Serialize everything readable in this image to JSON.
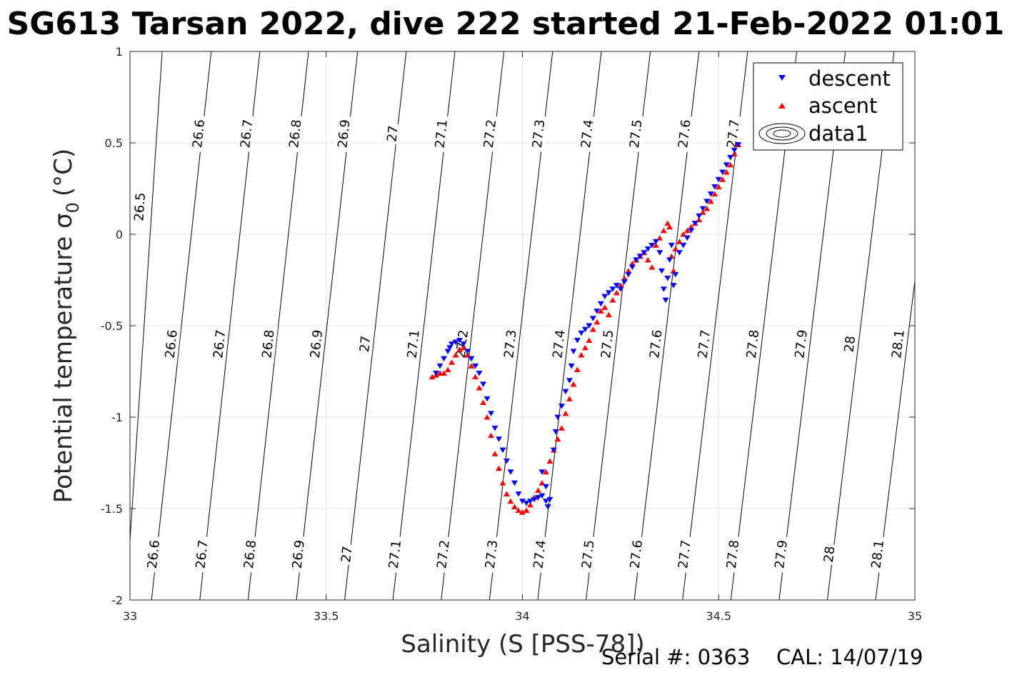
{
  "chart_data": {
    "type": "scatter",
    "title": "SG613 Tarsan 2022, dive 222 started 21-Feb-2022 01:01",
    "xlabel": "Salinity (S [PSS-78])",
    "ylabel_main": "Potential temperature σ",
    "ylabel_sub": "0",
    "ylabel_unit": "(°C)",
    "xlim": [
      33,
      35
    ],
    "ylim": [
      -2,
      1
    ],
    "x_ticks": [
      33,
      33.5,
      34,
      34.5,
      35
    ],
    "x_tick_labels": [
      "33",
      "33.5",
      "34",
      "34.5",
      "35"
    ],
    "y_ticks": [
      -2,
      -1.5,
      -1,
      -0.5,
      0,
      0.5,
      1
    ],
    "y_tick_labels": [
      "-2",
      "-1.5",
      "-1",
      "-0.5",
      "0",
      "0.5",
      "1"
    ],
    "grid": true,
    "legend_position": "top-right",
    "legend": [
      "descent",
      "ascent",
      "data1"
    ],
    "isopycnals": [
      {
        "value": 26.5,
        "label": "26.5",
        "s_at_tmax": 33.082,
        "s_at_tmin": 32.99,
        "label_points": [
          [
            33.025,
            0.15
          ]
        ]
      },
      {
        "value": 26.6,
        "label": "26.6",
        "s_at_tmax": 33.207,
        "s_at_tmin": 33.055,
        "label_points": [
          [
            33.175,
            0.55
          ],
          [
            33.105,
            -0.6
          ],
          [
            33.06,
            -1.75
          ]
        ]
      },
      {
        "value": 26.7,
        "label": "26.7",
        "s_at_tmax": 33.331,
        "s_at_tmin": 33.178,
        "label_points": [
          [
            33.297,
            0.55
          ],
          [
            33.228,
            -0.6
          ],
          [
            33.183,
            -1.75
          ]
        ]
      },
      {
        "value": 26.8,
        "label": "26.8",
        "s_at_tmax": 33.455,
        "s_at_tmin": 33.301,
        "label_points": [
          [
            33.421,
            0.55
          ],
          [
            33.352,
            -0.6
          ],
          [
            33.306,
            -1.75
          ]
        ]
      },
      {
        "value": 26.9,
        "label": "26.9",
        "s_at_tmax": 33.58,
        "s_at_tmin": 33.424,
        "label_points": [
          [
            33.545,
            0.55
          ],
          [
            33.475,
            -0.6
          ],
          [
            33.429,
            -1.75
          ]
        ]
      },
      {
        "value": 27.0,
        "label": "27",
        "s_at_tmax": 33.704,
        "s_at_tmin": 33.547,
        "label_points": [
          [
            33.669,
            0.55
          ],
          [
            33.599,
            -0.6
          ],
          [
            33.552,
            -1.75
          ]
        ]
      },
      {
        "value": 27.1,
        "label": "27.1",
        "s_at_tmax": 33.828,
        "s_at_tmin": 33.67,
        "label_points": [
          [
            33.793,
            0.55
          ],
          [
            33.722,
            -0.6
          ],
          [
            33.675,
            -1.75
          ]
        ]
      },
      {
        "value": 27.2,
        "label": "27.2",
        "s_at_tmax": 33.953,
        "s_at_tmin": 33.793,
        "label_points": [
          [
            33.917,
            0.55
          ],
          [
            33.846,
            -0.6
          ],
          [
            33.798,
            -1.75
          ]
        ]
      },
      {
        "value": 27.3,
        "label": "27.3",
        "s_at_tmax": 34.077,
        "s_at_tmin": 33.916,
        "label_points": [
          [
            34.041,
            0.55
          ],
          [
            33.969,
            -0.6
          ],
          [
            33.921,
            -1.75
          ]
        ]
      },
      {
        "value": 27.4,
        "label": "27.4",
        "s_at_tmax": 34.201,
        "s_at_tmin": 34.039,
        "label_points": [
          [
            34.165,
            0.55
          ],
          [
            34.093,
            -0.6
          ],
          [
            34.044,
            -1.75
          ]
        ]
      },
      {
        "value": 27.5,
        "label": "27.5",
        "s_at_tmax": 34.326,
        "s_at_tmin": 34.162,
        "label_points": [
          [
            34.289,
            0.55
          ],
          [
            34.216,
            -0.6
          ],
          [
            34.167,
            -1.75
          ]
        ]
      },
      {
        "value": 27.6,
        "label": "27.6",
        "s_at_tmax": 34.45,
        "s_at_tmin": 34.285,
        "label_points": [
          [
            34.413,
            0.55
          ],
          [
            34.34,
            -0.6
          ],
          [
            34.29,
            -1.75
          ]
        ]
      },
      {
        "value": 27.7,
        "label": "27.7",
        "s_at_tmax": 34.574,
        "s_at_tmin": 34.408,
        "label_points": [
          [
            34.537,
            0.55
          ],
          [
            34.463,
            -0.6
          ],
          [
            34.413,
            -1.75
          ]
        ]
      },
      {
        "value": 27.8,
        "label": "27.8",
        "s_at_tmax": 34.699,
        "s_at_tmin": 34.531,
        "label_points": [
          [
            34.587,
            -0.6
          ],
          [
            34.536,
            -1.75
          ]
        ]
      },
      {
        "value": 27.9,
        "label": "27.9",
        "s_at_tmax": 34.823,
        "s_at_tmin": 34.654,
        "label_points": [
          [
            34.71,
            -0.6
          ],
          [
            34.659,
            -1.75
          ]
        ]
      },
      {
        "value": 28.0,
        "label": "28",
        "s_at_tmax": 34.947,
        "s_at_tmin": 34.777,
        "label_points": [
          [
            34.834,
            -0.6
          ],
          [
            34.782,
            -1.75
          ]
        ]
      },
      {
        "value": 28.1,
        "label": "28.1",
        "s_at_tmax": 35.072,
        "s_at_tmin": 34.9,
        "label_points": [
          [
            34.957,
            -0.6
          ],
          [
            34.905,
            -1.75
          ]
        ]
      }
    ],
    "series": [
      {
        "name": "descent",
        "marker": "triangle-down",
        "color": "#0000ff",
        "points": [
          [
            33.78,
            -0.76
          ],
          [
            33.79,
            -0.72
          ],
          [
            33.8,
            -0.68
          ],
          [
            33.81,
            -0.64
          ],
          [
            33.815,
            -0.62
          ],
          [
            33.82,
            -0.6
          ],
          [
            33.83,
            -0.59
          ],
          [
            33.84,
            -0.58
          ],
          [
            33.85,
            -0.6
          ],
          [
            33.86,
            -0.64
          ],
          [
            33.87,
            -0.68
          ],
          [
            33.88,
            -0.72
          ],
          [
            33.89,
            -0.76
          ],
          [
            33.9,
            -0.82
          ],
          [
            33.91,
            -0.9
          ],
          [
            33.92,
            -0.98
          ],
          [
            33.93,
            -1.06
          ],
          [
            33.94,
            -1.12
          ],
          [
            33.95,
            -1.18
          ],
          [
            33.96,
            -1.24
          ],
          [
            33.97,
            -1.3
          ],
          [
            33.98,
            -1.36
          ],
          [
            33.99,
            -1.42
          ],
          [
            34.0,
            -1.46
          ],
          [
            34.01,
            -1.47
          ],
          [
            34.02,
            -1.46
          ],
          [
            34.03,
            -1.45
          ],
          [
            34.04,
            -1.44
          ],
          [
            34.05,
            -1.43
          ],
          [
            34.06,
            -1.46
          ],
          [
            34.065,
            -1.49
          ],
          [
            34.07,
            -1.45
          ],
          [
            34.06,
            -1.38
          ],
          [
            34.05,
            -1.3
          ],
          [
            34.08,
            -1.18
          ],
          [
            34.085,
            -1.08
          ],
          [
            34.09,
            -1.0
          ],
          [
            34.1,
            -0.94
          ],
          [
            34.11,
            -0.86
          ],
          [
            34.12,
            -0.8
          ],
          [
            34.125,
            -0.72
          ],
          [
            34.13,
            -0.64
          ],
          [
            34.14,
            -0.58
          ],
          [
            34.15,
            -0.54
          ],
          [
            34.16,
            -0.52
          ],
          [
            34.17,
            -0.5
          ],
          [
            34.18,
            -0.46
          ],
          [
            34.19,
            -0.42
          ],
          [
            34.2,
            -0.38
          ],
          [
            34.21,
            -0.34
          ],
          [
            34.22,
            -0.32
          ],
          [
            34.23,
            -0.3
          ],
          [
            34.24,
            -0.28
          ],
          [
            34.25,
            -0.3
          ],
          [
            34.26,
            -0.26
          ],
          [
            34.27,
            -0.22
          ],
          [
            34.28,
            -0.18
          ],
          [
            34.29,
            -0.14
          ],
          [
            34.3,
            -0.12
          ],
          [
            34.31,
            -0.1
          ],
          [
            34.32,
            -0.08
          ],
          [
            34.33,
            -0.06
          ],
          [
            34.34,
            -0.04
          ],
          [
            34.35,
            -0.1
          ],
          [
            34.355,
            -0.2
          ],
          [
            34.36,
            -0.3
          ],
          [
            34.365,
            -0.36
          ],
          [
            34.37,
            -0.24
          ],
          [
            34.375,
            -0.14
          ],
          [
            34.38,
            -0.06
          ],
          [
            34.385,
            -0.28
          ],
          [
            34.39,
            -0.22
          ],
          [
            34.4,
            -0.1
          ],
          [
            34.41,
            -0.06
          ],
          [
            34.42,
            -0.02
          ],
          [
            34.43,
            0.02
          ],
          [
            34.44,
            0.06
          ],
          [
            34.45,
            0.1
          ],
          [
            34.46,
            0.14
          ],
          [
            34.47,
            0.18
          ],
          [
            34.48,
            0.22
          ],
          [
            34.49,
            0.26
          ],
          [
            34.5,
            0.3
          ],
          [
            34.51,
            0.34
          ],
          [
            34.52,
            0.38
          ],
          [
            34.53,
            0.42
          ],
          [
            34.54,
            0.46
          ],
          [
            34.55,
            0.49
          ]
        ]
      },
      {
        "name": "ascent",
        "marker": "triangle-up",
        "color": "#ff0000",
        "points": [
          [
            33.77,
            -0.78
          ],
          [
            33.78,
            -0.77
          ],
          [
            33.79,
            -0.76
          ],
          [
            33.8,
            -0.76
          ],
          [
            33.81,
            -0.74
          ],
          [
            33.82,
            -0.7
          ],
          [
            33.83,
            -0.66
          ],
          [
            33.84,
            -0.63
          ],
          [
            33.85,
            -0.62
          ],
          [
            33.86,
            -0.66
          ],
          [
            33.87,
            -0.72
          ],
          [
            33.88,
            -0.78
          ],
          [
            33.89,
            -0.84
          ],
          [
            33.9,
            -0.92
          ],
          [
            33.91,
            -1.0
          ],
          [
            33.92,
            -1.1
          ],
          [
            33.93,
            -1.2
          ],
          [
            33.94,
            -1.28
          ],
          [
            33.95,
            -1.36
          ],
          [
            33.96,
            -1.42
          ],
          [
            33.97,
            -1.46
          ],
          [
            33.98,
            -1.49
          ],
          [
            33.99,
            -1.51
          ],
          [
            34.0,
            -1.52
          ],
          [
            34.01,
            -1.51
          ],
          [
            34.02,
            -1.48
          ],
          [
            34.03,
            -1.44
          ],
          [
            34.04,
            -1.4
          ],
          [
            34.05,
            -1.36
          ],
          [
            34.06,
            -1.3
          ],
          [
            34.07,
            -1.24
          ],
          [
            34.08,
            -1.18
          ],
          [
            34.09,
            -1.12
          ],
          [
            34.1,
            -1.06
          ],
          [
            34.11,
            -0.98
          ],
          [
            34.12,
            -0.9
          ],
          [
            34.13,
            -0.82
          ],
          [
            34.14,
            -0.74
          ],
          [
            34.15,
            -0.66
          ],
          [
            34.16,
            -0.62
          ],
          [
            34.17,
            -0.58
          ],
          [
            34.18,
            -0.52
          ],
          [
            34.19,
            -0.48
          ],
          [
            34.2,
            -0.42
          ],
          [
            34.21,
            -0.4
          ],
          [
            34.22,
            -0.44
          ],
          [
            34.23,
            -0.36
          ],
          [
            34.24,
            -0.32
          ],
          [
            34.25,
            -0.28
          ],
          [
            34.26,
            -0.24
          ],
          [
            34.27,
            -0.2
          ],
          [
            34.28,
            -0.16
          ],
          [
            34.29,
            -0.14
          ],
          [
            34.3,
            -0.12
          ],
          [
            34.31,
            -0.1
          ],
          [
            34.32,
            -0.14
          ],
          [
            34.33,
            -0.18
          ],
          [
            34.34,
            -0.06
          ],
          [
            34.35,
            -0.02
          ],
          [
            34.36,
            0.02
          ],
          [
            34.37,
            0.06
          ],
          [
            34.375,
            0.04
          ],
          [
            34.38,
            -0.12
          ],
          [
            34.385,
            -0.2
          ],
          [
            34.39,
            -0.08
          ],
          [
            34.4,
            -0.04
          ],
          [
            34.41,
            0.0
          ],
          [
            34.42,
            0.02
          ],
          [
            34.43,
            0.04
          ],
          [
            34.44,
            0.06
          ],
          [
            34.45,
            0.08
          ],
          [
            34.46,
            0.12
          ],
          [
            34.47,
            0.14
          ],
          [
            34.48,
            0.18
          ],
          [
            34.49,
            0.22
          ],
          [
            34.5,
            0.26
          ],
          [
            34.51,
            0.3
          ],
          [
            34.52,
            0.34
          ],
          [
            34.53,
            0.38
          ],
          [
            34.54,
            0.44
          ],
          [
            34.55,
            0.49
          ]
        ]
      },
      {
        "name": "data1",
        "marker": "contour",
        "color": "#000000",
        "points": []
      }
    ]
  },
  "footer": {
    "serial_label": "Serial #: 0363",
    "cal_label": "CAL: 14/07/19"
  }
}
